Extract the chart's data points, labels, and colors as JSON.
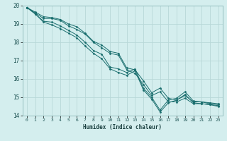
{
  "xlabel": "Humidex (Indice chaleur)",
  "ylabel": "",
  "background_color": "#d4eeee",
  "grid_color": "#b8d8d8",
  "line_color": "#1a6e6e",
  "xlim": [
    -0.5,
    23.5
  ],
  "ylim": [
    14,
    20
  ],
  "xticks": [
    0,
    1,
    2,
    3,
    4,
    5,
    6,
    7,
    8,
    9,
    10,
    11,
    12,
    13,
    14,
    15,
    16,
    17,
    18,
    19,
    20,
    21,
    22,
    23
  ],
  "yticks": [
    14,
    15,
    16,
    17,
    18,
    19,
    20
  ],
  "series": [
    [
      19.9,
      19.65,
      19.4,
      19.35,
      19.25,
      19.0,
      18.85,
      18.5,
      18.05,
      17.85,
      17.5,
      17.4,
      16.6,
      16.5,
      15.9,
      15.25,
      15.5,
      14.95,
      14.85,
      15.1,
      14.75,
      14.75,
      14.65,
      14.6
    ],
    [
      19.9,
      19.6,
      19.3,
      19.3,
      19.2,
      18.9,
      18.7,
      18.45,
      18.0,
      17.7,
      17.4,
      17.3,
      16.5,
      16.3,
      15.7,
      15.1,
      15.3,
      14.75,
      14.75,
      14.95,
      14.65,
      14.65,
      14.6,
      14.55
    ],
    [
      19.9,
      19.55,
      19.15,
      19.1,
      18.9,
      18.65,
      18.4,
      18.0,
      17.55,
      17.35,
      16.65,
      16.55,
      16.35,
      16.55,
      15.5,
      15.0,
      14.3,
      14.85,
      14.95,
      15.3,
      14.8,
      14.75,
      14.7,
      14.65
    ],
    [
      19.9,
      19.55,
      19.1,
      18.95,
      18.75,
      18.5,
      18.25,
      17.8,
      17.4,
      17.1,
      16.55,
      16.35,
      16.2,
      16.45,
      15.4,
      14.9,
      14.2,
      14.7,
      14.85,
      15.15,
      14.7,
      14.65,
      14.6,
      14.5
    ]
  ]
}
